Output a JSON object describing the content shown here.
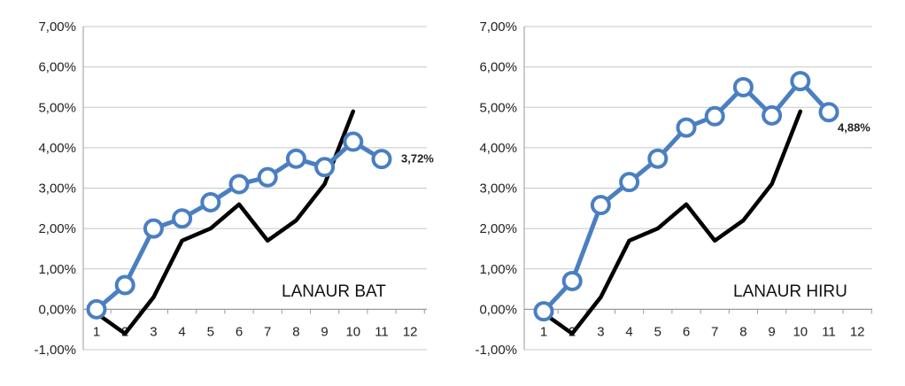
{
  "chart_data": [
    {
      "type": "line",
      "title": "",
      "panel_label": "LANAUR BAT",
      "xlabel": "",
      "ylabel": "",
      "ylim": [
        -0.01,
        0.07
      ],
      "y_ticks": [
        "-1,00%",
        "0,00%",
        "1,00%",
        "2,00%",
        "3,00%",
        "4,00%",
        "5,00%",
        "6,00%",
        "7,00%"
      ],
      "x_ticks": [
        "1",
        "2",
        "3",
        "4",
        "5",
        "6",
        "7",
        "8",
        "9",
        "10",
        "11",
        "12"
      ],
      "grid": "horizontal",
      "series": [
        {
          "color": "#4a7fc1",
          "marker": "circle",
          "x": [
            1,
            2,
            3,
            4,
            5,
            6,
            7,
            8,
            9,
            10,
            11
          ],
          "values": [
            0.0,
            0.006,
            0.02,
            0.0225,
            0.0265,
            0.031,
            0.0327,
            0.0373,
            0.0352,
            0.0415,
            0.0372
          ]
        },
        {
          "color": "#000000",
          "marker": "none",
          "x": [
            1,
            2,
            3,
            4,
            5,
            6,
            7,
            8,
            9,
            10
          ],
          "values": [
            -0.001,
            -0.006,
            0.003,
            0.017,
            0.02,
            0.026,
            0.017,
            0.022,
            0.031,
            0.049
          ]
        }
      ],
      "annotations": [
        {
          "text": "3,72%",
          "x": 11,
          "y": 0.0372
        }
      ]
    },
    {
      "type": "line",
      "title": "",
      "panel_label": "LANAUR HIRU",
      "xlabel": "",
      "ylabel": "",
      "ylim": [
        -0.01,
        0.07
      ],
      "y_ticks": [
        "-1,00%",
        "0,00%",
        "1,00%",
        "2,00%",
        "3,00%",
        "4,00%",
        "5,00%",
        "6,00%",
        "7,00%"
      ],
      "x_ticks": [
        "1",
        "2",
        "3",
        "4",
        "5",
        "6",
        "7",
        "8",
        "9",
        "10",
        "11",
        "12"
      ],
      "grid": "horizontal",
      "series": [
        {
          "color": "#4a7fc1",
          "marker": "circle",
          "x": [
            1,
            2,
            3,
            4,
            5,
            6,
            7,
            8,
            9,
            10,
            11
          ],
          "values": [
            -0.0005,
            0.007,
            0.0258,
            0.0315,
            0.0373,
            0.045,
            0.0478,
            0.055,
            0.048,
            0.0565,
            0.0488
          ]
        },
        {
          "color": "#000000",
          "marker": "none",
          "x": [
            1,
            2,
            3,
            4,
            5,
            6,
            7,
            8,
            9,
            10
          ],
          "values": [
            -0.001,
            -0.006,
            0.003,
            0.017,
            0.02,
            0.026,
            0.017,
            0.022,
            0.031,
            0.049
          ]
        }
      ],
      "annotations": [
        {
          "text": "4,88%",
          "x": 11,
          "y": 0.0488
        }
      ]
    }
  ]
}
